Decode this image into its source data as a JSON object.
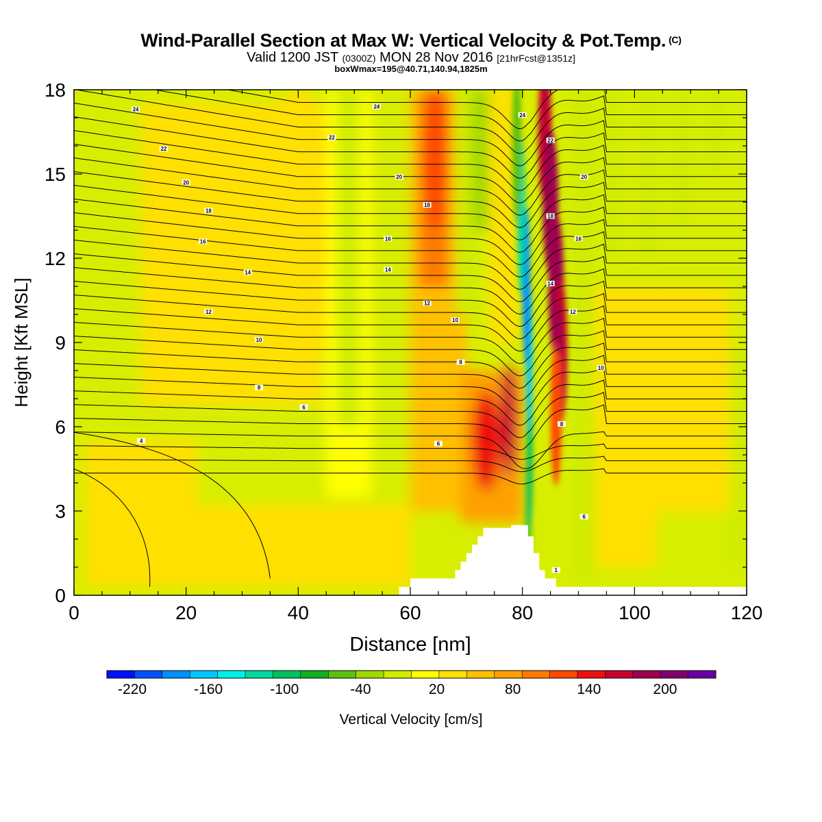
{
  "header": {
    "title": "Wind-Parallel Section at Max W: Vertical Velocity & Pot.Temp.",
    "title_mark": "(C)",
    "valid_prefix": "Valid 1200 JST",
    "valid_utc": "(0300Z)",
    "valid_date": "MON 28 Nov 2016",
    "fcst": "[21hrFcst@1351z]",
    "boxwmax": "boxWmax=195@40.71,140.94,1825m"
  },
  "chart_data": {
    "type": "heatmap",
    "title": "Wind-Parallel Section at Max W: Vertical Velocity & Pot.Temp. (C)",
    "xlabel": "Distance [nm]",
    "ylabel": "Height [Kft MSL]",
    "xlim": [
      0,
      120
    ],
    "ylim": [
      0,
      18
    ],
    "xticks": [
      0,
      20,
      40,
      60,
      80,
      100,
      120
    ],
    "yticks": [
      0,
      3,
      6,
      9,
      12,
      15,
      18
    ],
    "grid": false,
    "colorbar": {
      "label": "Vertical Velocity [cm/s]",
      "min": -240,
      "max": 240,
      "step": 20,
      "tick_labels": [
        "-220",
        "-160",
        "-100",
        "-40",
        "20",
        "80",
        "140",
        "200"
      ],
      "tick_values": [
        -220,
        -160,
        -100,
        -40,
        20,
        80,
        140,
        200
      ],
      "colors": [
        "#0010ff",
        "#0050ff",
        "#0090ff",
        "#00c8ff",
        "#00f0e8",
        "#00d8a0",
        "#00c060",
        "#10b020",
        "#5cc010",
        "#a0d800",
        "#d0ec00",
        "#ffff00",
        "#ffe000",
        "#ffc000",
        "#ffa000",
        "#ff7a00",
        "#ff4a00",
        "#ee1010",
        "#c80030",
        "#a00050",
        "#800070",
        "#6a00a0"
      ]
    },
    "vertical_velocity_features": [
      {
        "kind": "updraft",
        "x_center": 86.5,
        "y_range": [
          7,
          18
        ],
        "peak": 150
      },
      {
        "kind": "updraft",
        "x_center": 77.5,
        "y_range": [
          4,
          8
        ],
        "peak": 140
      },
      {
        "kind": "updraft",
        "x_center": 73.5,
        "y_range": [
          4,
          7
        ],
        "peak": 100
      },
      {
        "kind": "updraft",
        "x_center": 64.5,
        "y_range": [
          12,
          18
        ],
        "peak": 80
      },
      {
        "kind": "downdraft",
        "x_center": 81,
        "y_range": [
          1,
          18
        ],
        "peak": -220
      },
      {
        "kind": "downdraft",
        "x_center": 49,
        "y_range": [
          3,
          18
        ],
        "peak": -40
      },
      {
        "kind": "downdraft",
        "x_center": 119,
        "y_range": [
          1,
          9
        ],
        "peak": -50
      }
    ],
    "potential_temperature_labels": [
      {
        "text": "24",
        "x": 11,
        "y": 17.3
      },
      {
        "text": "24",
        "x": 54,
        "y": 17.4
      },
      {
        "text": "24",
        "x": 80,
        "y": 17.1
      },
      {
        "text": "22",
        "x": 16,
        "y": 15.9
      },
      {
        "text": "22",
        "x": 46,
        "y": 16.3
      },
      {
        "text": "22",
        "x": 85,
        "y": 16.2
      },
      {
        "text": "20",
        "x": 20,
        "y": 14.7
      },
      {
        "text": "20",
        "x": 58,
        "y": 14.9
      },
      {
        "text": "20",
        "x": 91,
        "y": 14.9
      },
      {
        "text": "18",
        "x": 24,
        "y": 13.7
      },
      {
        "text": "18",
        "x": 63,
        "y": 13.9
      },
      {
        "text": "18",
        "x": 85,
        "y": 13.5
      },
      {
        "text": "16",
        "x": 23,
        "y": 12.6
      },
      {
        "text": "16",
        "x": 56,
        "y": 12.7
      },
      {
        "text": "16",
        "x": 90,
        "y": 12.7
      },
      {
        "text": "14",
        "x": 31,
        "y": 11.5
      },
      {
        "text": "14",
        "x": 56,
        "y": 11.6
      },
      {
        "text": "14",
        "x": 85,
        "y": 11.1
      },
      {
        "text": "12",
        "x": 24,
        "y": 10.1
      },
      {
        "text": "12",
        "x": 63,
        "y": 10.4
      },
      {
        "text": "12",
        "x": 89,
        "y": 10.1
      },
      {
        "text": "10",
        "x": 33,
        "y": 9.1
      },
      {
        "text": "10",
        "x": 68,
        "y": 9.8
      },
      {
        "text": "10",
        "x": 94,
        "y": 8.1
      },
      {
        "text": "8",
        "x": 33,
        "y": 7.4
      },
      {
        "text": "8",
        "x": 69,
        "y": 8.3
      },
      {
        "text": "8",
        "x": 87,
        "y": 6.1
      },
      {
        "text": "6",
        "x": 41,
        "y": 6.7
      },
      {
        "text": "6",
        "x": 65,
        "y": 5.4
      },
      {
        "text": "6",
        "x": 91,
        "y": 2.8
      },
      {
        "text": "4",
        "x": 12,
        "y": 5.5
      },
      {
        "text": "1",
        "x": 86,
        "y": 0.9
      }
    ],
    "terrain": [
      [
        58,
        0
      ],
      [
        58,
        0.3
      ],
      [
        60,
        0.3
      ],
      [
        60,
        0.6
      ],
      [
        68,
        0.6
      ],
      [
        68,
        0.9
      ],
      [
        69,
        0.9
      ],
      [
        69,
        1.2
      ],
      [
        70,
        1.2
      ],
      [
        70,
        1.5
      ],
      [
        71,
        1.5
      ],
      [
        71,
        1.8
      ],
      [
        72,
        1.8
      ],
      [
        72,
        2.1
      ],
      [
        73,
        2.1
      ],
      [
        73,
        2.4
      ],
      [
        78,
        2.4
      ],
      [
        78,
        2.5
      ],
      [
        81,
        2.5
      ],
      [
        81,
        2.1
      ],
      [
        82,
        2.1
      ],
      [
        82,
        1.5
      ],
      [
        83,
        1.5
      ],
      [
        83,
        0.9
      ],
      [
        84,
        0.9
      ],
      [
        84,
        0.6
      ],
      [
        86,
        0.6
      ],
      [
        86,
        0.3
      ],
      [
        120,
        0.3
      ],
      [
        120,
        0
      ]
    ]
  }
}
